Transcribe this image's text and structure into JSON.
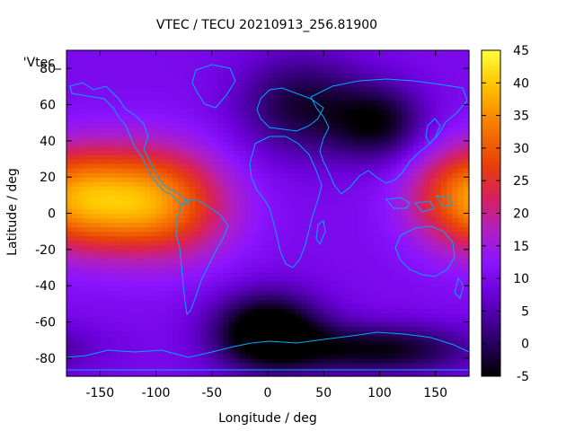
{
  "chart_data": {
    "type": "heatmap",
    "title": "VTEC / TECU 20210913_256.81900",
    "xlabel": "Longitude / deg",
    "ylabel": "Latitude / deg",
    "series_label": "'Vtec_",
    "xlim": [
      -180,
      180
    ],
    "ylim": [
      -90,
      90
    ],
    "x_ticks": [
      -150,
      -100,
      -50,
      0,
      50,
      100,
      150
    ],
    "y_ticks": [
      -80,
      -60,
      -40,
      -20,
      0,
      20,
      40,
      60,
      80
    ],
    "colorbar": {
      "range": [
        -5,
        45
      ],
      "ticks": [
        -5,
        0,
        5,
        10,
        15,
        20,
        25,
        30,
        35,
        40,
        45
      ],
      "palette": "black-purple-red-orange-yellow"
    },
    "features": [
      {
        "lon": -100,
        "lat": 5,
        "spread_lon": 45,
        "spread_lat": 22,
        "vtec": 34
      },
      {
        "lon": -160,
        "lat": 8,
        "spread_lon": 40,
        "spread_lat": 20,
        "vtec": 22
      },
      {
        "lon": 170,
        "lat": 10,
        "spread_lon": 35,
        "spread_lat": 20,
        "vtec": 22
      },
      {
        "lon": -110,
        "lat": -20,
        "spread_lon": 35,
        "spread_lat": 15,
        "vtec": 8
      },
      {
        "lon": 0,
        "lat": -65,
        "spread_lon": 35,
        "spread_lat": 15,
        "vtec": -10
      },
      {
        "lon": 100,
        "lat": -75,
        "spread_lon": 60,
        "spread_lat": 10,
        "vtec": -4
      },
      {
        "lon": 100,
        "lat": 50,
        "spread_lon": 30,
        "spread_lat": 15,
        "vtec": -3
      },
      {
        "lon": 30,
        "lat": 60,
        "spread_lon": 40,
        "spread_lat": 20,
        "vtec": -2
      }
    ],
    "background_vtec": 10
  },
  "colors": {
    "coastline": "#00a8ff",
    "frame": "#000000"
  }
}
